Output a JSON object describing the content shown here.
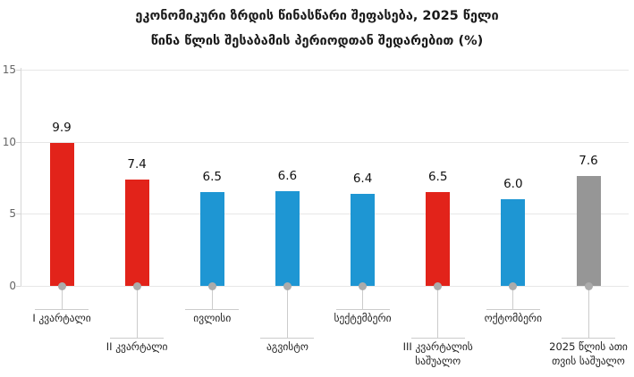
{
  "title": {
    "line1": "ეკონომიკური ზრდის წინასწარი შეფასება, 2025 წელი",
    "line2": "წინა წლის შესაბამის პერიოდთან შედარებით (%)"
  },
  "chart_data": {
    "type": "bar",
    "title": "ეკონომიკური ზრდის წინასწარი შეფასება, 2025 წელი — წინა წლის შესაბამის პერიოდთან შედარებით (%)",
    "categories": [
      "I კვარტალი",
      "II კვარტალი",
      "ივლისი",
      "აგვისტო",
      "სექტემბერი",
      "III კვარტალის\nსაშუალო",
      "ოქტომბერი",
      "2025 წლის ათი\nთვის საშუალო"
    ],
    "values": [
      9.9,
      7.4,
      6.5,
      6.6,
      6.4,
      6.5,
      6.0,
      7.6
    ],
    "value_labels": [
      "9.9",
      "7.4",
      "6.5",
      "6.6",
      "6.4",
      "6.5",
      "6.0",
      "7.6"
    ],
    "bar_colors": [
      "red",
      "red",
      "blue",
      "blue",
      "blue",
      "red",
      "blue",
      "gray"
    ],
    "label_rows": [
      1,
      2,
      1,
      2,
      1,
      2,
      1,
      2
    ],
    "xlabel": "",
    "ylabel": "",
    "ylim": [
      0,
      15
    ],
    "yticks": [
      0,
      5,
      10,
      15
    ],
    "grid": true,
    "legend": false
  },
  "palette": {
    "red": "#e2231a",
    "blue": "#1e96d3",
    "gray": "#969696",
    "marker_dot": "#ababab",
    "grid_line": "#e7e7e7",
    "axis_line": "#d6d6d6",
    "leader_line": "#cccccc",
    "tick_label": "#666666",
    "value_label": "#111111",
    "category_label": "#222222",
    "title_text": "#1a1a1a",
    "background": "#ffffff"
  }
}
